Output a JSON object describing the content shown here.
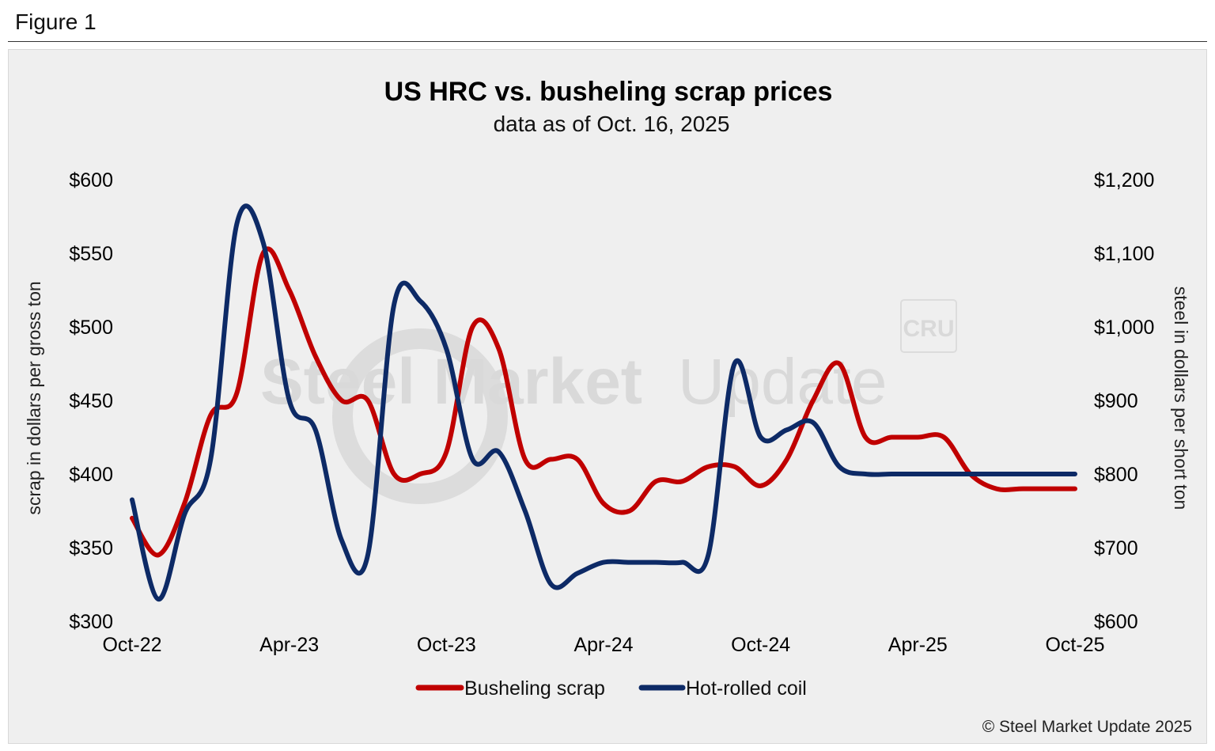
{
  "figure_label": "Figure 1",
  "copyright": "© Steel Market Update 2025",
  "watermark": {
    "bold": "Steel Market",
    "light": "Update",
    "badge": "CRU"
  },
  "colors": {
    "scrap": "#c00000",
    "hrc": "#0d2a66",
    "background": "#efefef"
  },
  "chart_data": {
    "type": "line",
    "title": "US HRC vs. busheling scrap prices",
    "subtitle": "data as of Oct. 16, 2025",
    "x_tick_labels": [
      "Oct-22",
      "Apr-23",
      "Oct-23",
      "Apr-24",
      "Oct-24",
      "Apr-25",
      "Oct-25"
    ],
    "y_left": {
      "label": "scrap in dollars per gross ton",
      "min": 300,
      "max": 600,
      "ticks": [
        "$300",
        "$350",
        "$400",
        "$450",
        "$500",
        "$550",
        "$600"
      ]
    },
    "y_right": {
      "label": "steel in dollars per short ton",
      "min": 600,
      "max": 1200,
      "ticks": [
        "$600",
        "$700",
        "$800",
        "$900",
        "$1,000",
        "$1,100",
        "$1,200"
      ]
    },
    "grid": false,
    "legend_position": "bottom",
    "series": [
      {
        "name": "Busheling scrap",
        "axis": "left",
        "x": [
          "2022-10",
          "2022-11",
          "2022-12",
          "2023-01",
          "2023-02",
          "2023-03",
          "2023-04",
          "2023-05",
          "2023-06",
          "2023-07",
          "2023-08",
          "2023-09",
          "2023-10",
          "2023-11",
          "2023-12",
          "2024-01",
          "2024-02",
          "2024-03",
          "2024-04",
          "2024-05",
          "2024-06",
          "2024-07",
          "2024-08",
          "2024-09",
          "2024-10",
          "2024-11",
          "2024-12",
          "2025-01",
          "2025-02",
          "2025-03",
          "2025-04",
          "2025-05",
          "2025-06",
          "2025-07",
          "2025-08",
          "2025-09",
          "2025-10"
        ],
        "values": [
          370,
          345,
          380,
          440,
          455,
          550,
          525,
          480,
          450,
          450,
          400,
          400,
          415,
          500,
          485,
          410,
          410,
          410,
          380,
          375,
          395,
          395,
          405,
          405,
          392,
          410,
          450,
          475,
          425,
          425,
          425,
          425,
          400,
          390,
          390,
          390,
          390
        ]
      },
      {
        "name": "Hot-rolled coil",
        "axis": "right",
        "x": [
          "2022-10",
          "2022-11",
          "2022-12",
          "2023-01",
          "2023-02",
          "2023-03",
          "2023-04",
          "2023-05",
          "2023-06",
          "2023-07",
          "2023-08",
          "2023-09",
          "2023-10",
          "2023-11",
          "2023-12",
          "2024-01",
          "2024-02",
          "2024-03",
          "2024-04",
          "2024-05",
          "2024-06",
          "2024-07",
          "2024-08",
          "2024-09",
          "2024-10",
          "2024-11",
          "2024-12",
          "2025-01",
          "2025-02",
          "2025-03",
          "2025-04",
          "2025-05",
          "2025-06",
          "2025-07",
          "2025-08",
          "2025-09",
          "2025-10"
        ],
        "values": [
          765,
          630,
          745,
          820,
          1140,
          1115,
          900,
          860,
          710,
          690,
          1030,
          1035,
          970,
          820,
          830,
          750,
          650,
          665,
          680,
          680,
          680,
          680,
          690,
          950,
          850,
          860,
          870,
          810,
          800,
          800,
          800,
          800,
          800,
          800,
          800,
          800,
          800
        ]
      }
    ]
  }
}
